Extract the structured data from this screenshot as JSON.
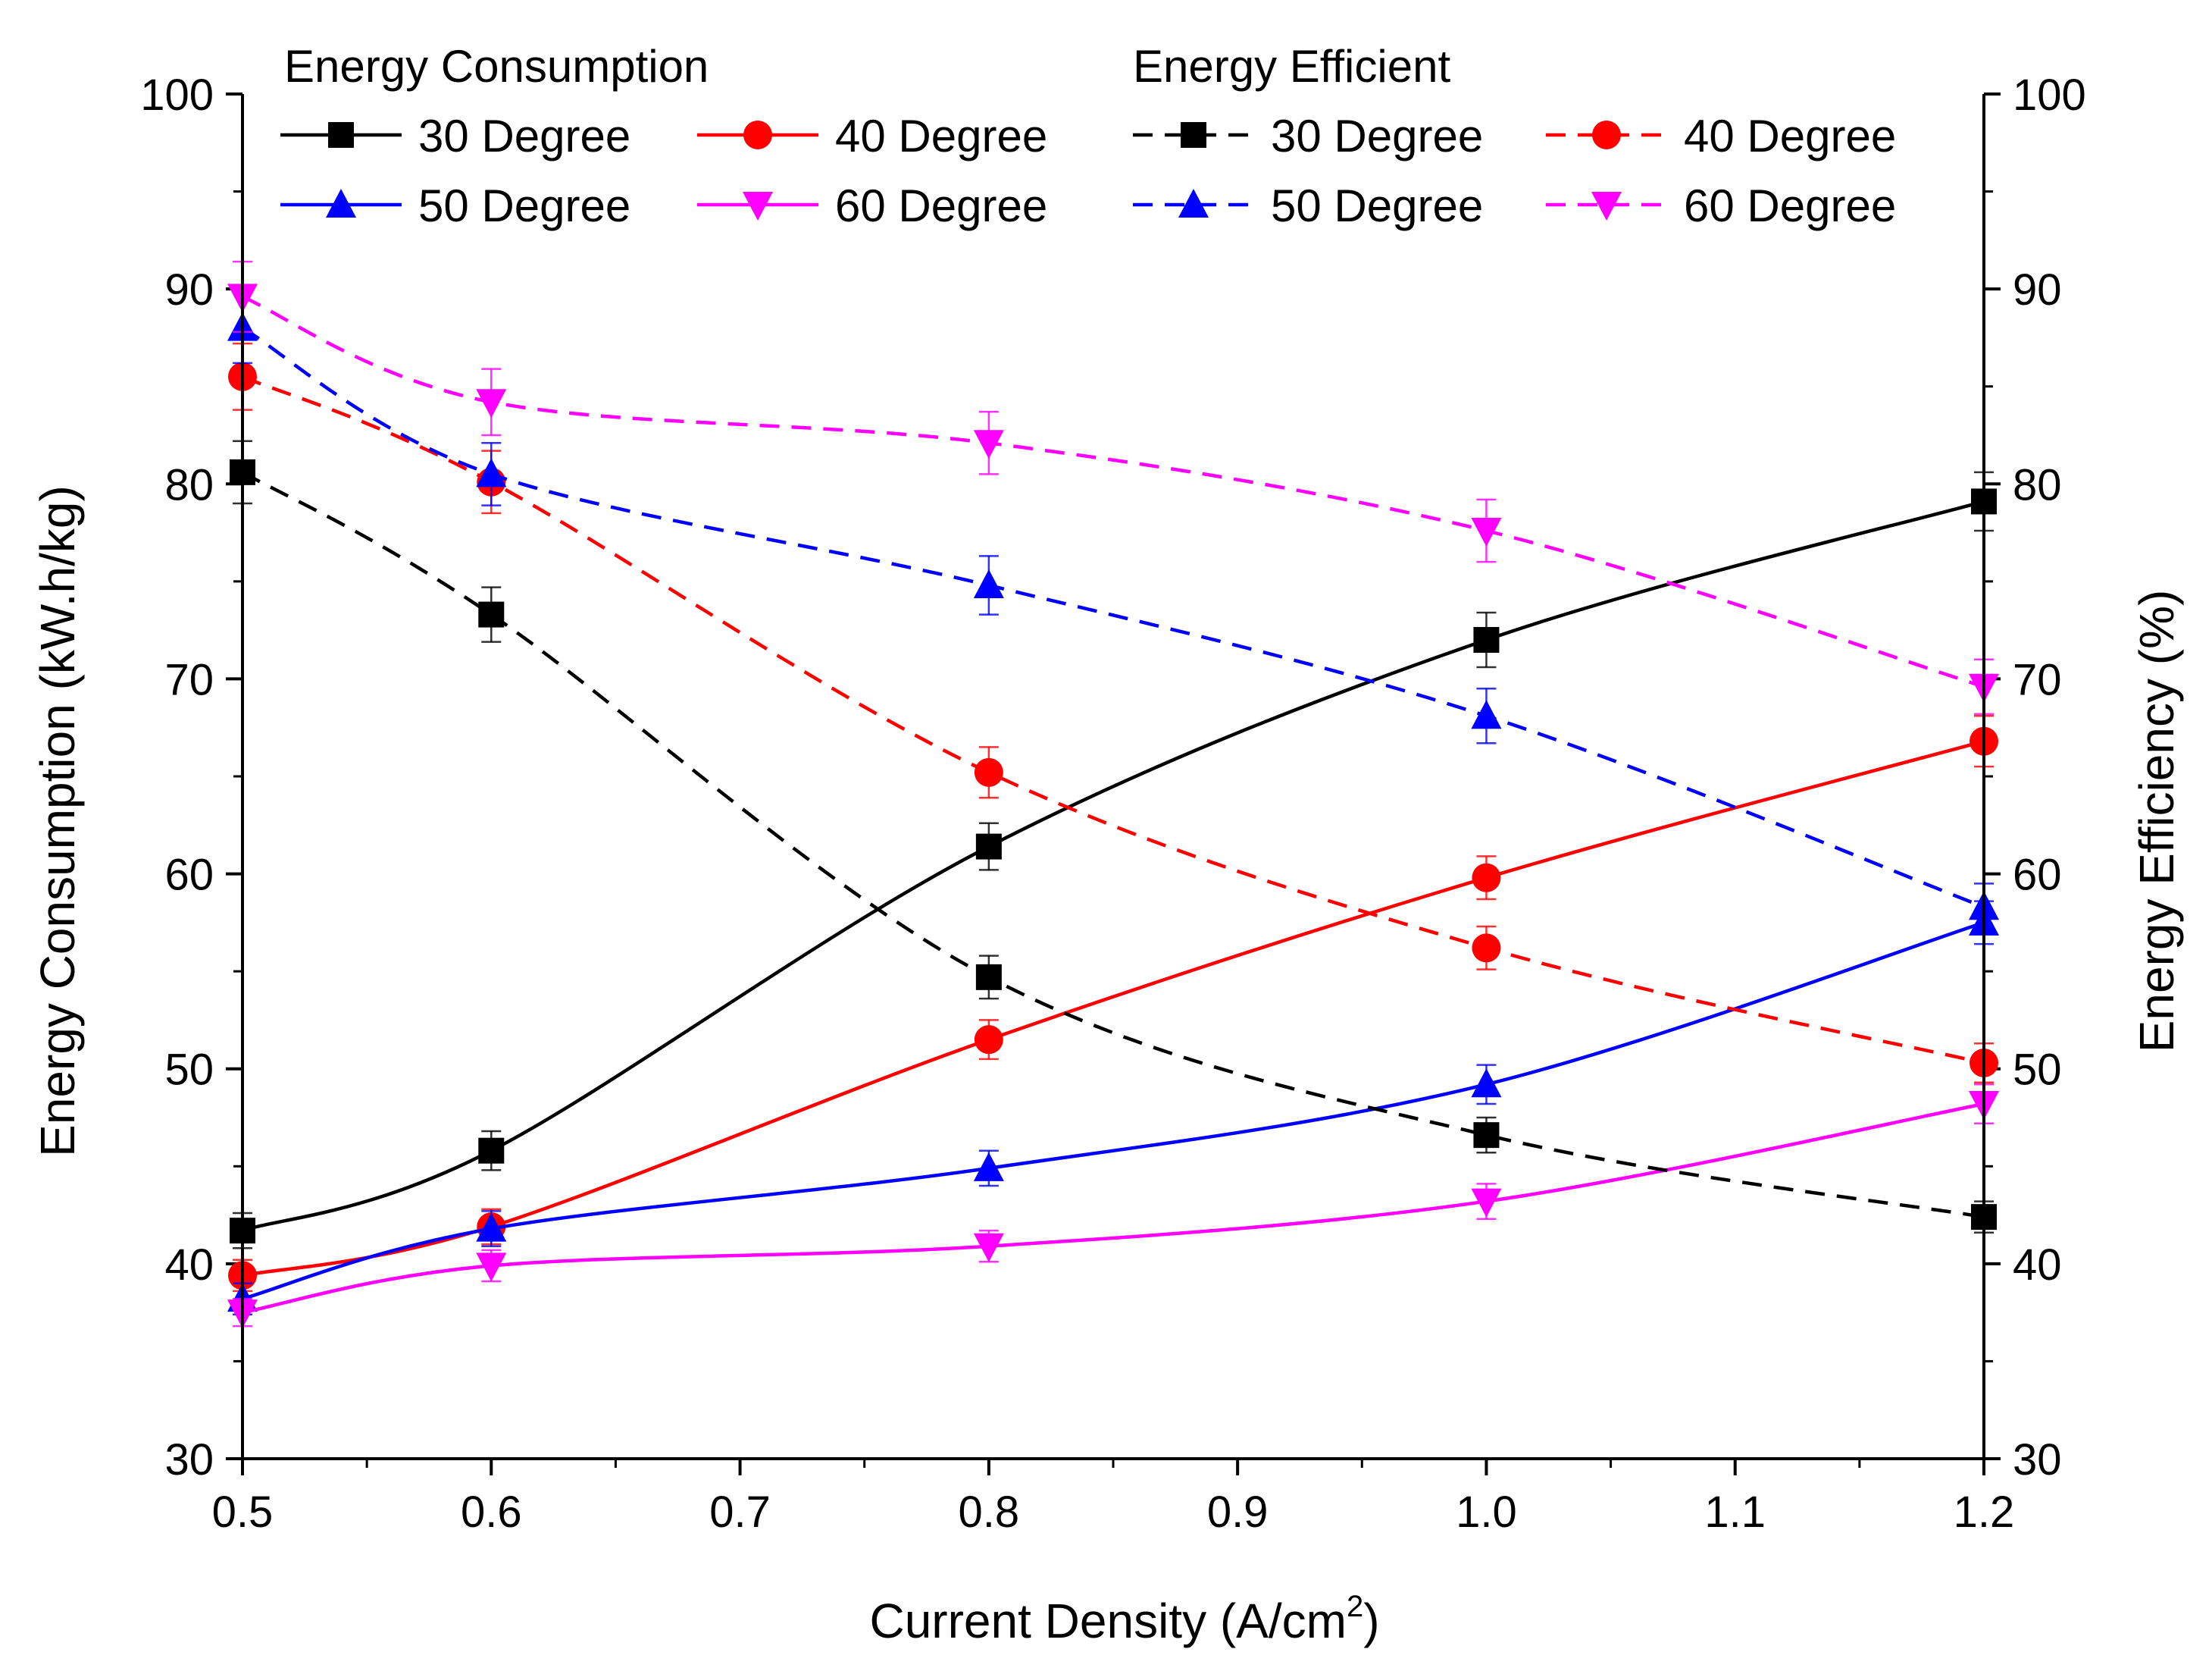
{
  "chart_data": {
    "type": "line",
    "xlabel": "Current Density (A/cm",
    "xlabel_sup": "2",
    "xlabel_close": ")",
    "ylabel_left": "Energy Consumption (kW.h/kg)",
    "ylabel_right": "Energy Efficiency (%)",
    "xlim": [
      0.5,
      1.2
    ],
    "ylim": [
      30,
      100
    ],
    "x_ticks": [
      "0.5",
      "0.6",
      "0.7",
      "0.8",
      "0.9",
      "1.0",
      "1.1",
      "1.2"
    ],
    "y_ticks": [
      "30",
      "40",
      "50",
      "60",
      "70",
      "80",
      "90",
      "100"
    ],
    "legend": {
      "placement": "top",
      "group_consumption": "Energy Consumption",
      "group_efficiency": "Energy Efficient"
    },
    "x": [
      0.5,
      0.6,
      0.8,
      1.0,
      1.2
    ],
    "series": [
      {
        "name": "30 Degree",
        "group": "consumption",
        "color": "#000000",
        "marker": "square",
        "dashed": false,
        "values": [
          41.7,
          45.8,
          61.4,
          72.0,
          79.1
        ],
        "errors": [
          0.9,
          1.0,
          1.2,
          1.4,
          1.5
        ]
      },
      {
        "name": "40 Degree",
        "group": "consumption",
        "color": "#ff0000",
        "marker": "circle",
        "dashed": false,
        "values": [
          39.4,
          41.9,
          51.5,
          59.8,
          66.8
        ],
        "errors": [
          0.8,
          0.9,
          1.0,
          1.1,
          1.3
        ]
      },
      {
        "name": "50 Degree",
        "group": "consumption",
        "color": "#0000ff",
        "marker": "triangle-up",
        "dashed": false,
        "values": [
          38.2,
          41.8,
          44.9,
          49.2,
          57.5
        ],
        "errors": [
          0.8,
          0.9,
          0.9,
          1.0,
          1.1
        ]
      },
      {
        "name": "60 Degree",
        "group": "consumption",
        "color": "#ff00ff",
        "marker": "triangle-down",
        "dashed": false,
        "values": [
          37.5,
          39.9,
          40.9,
          43.2,
          48.2
        ],
        "errors": [
          0.7,
          0.8,
          0.8,
          0.9,
          1.0
        ]
      },
      {
        "name": "30 Degree",
        "group": "efficiency",
        "color": "#000000",
        "marker": "square",
        "dashed": true,
        "values": [
          80.6,
          73.3,
          54.7,
          46.6,
          42.4
        ],
        "errors": [
          1.6,
          1.4,
          1.1,
          0.9,
          0.8
        ]
      },
      {
        "name": "40 Degree",
        "group": "efficiency",
        "color": "#ff0000",
        "marker": "circle",
        "dashed": true,
        "values": [
          85.5,
          80.1,
          65.2,
          56.2,
          50.3
        ],
        "errors": [
          1.7,
          1.6,
          1.3,
          1.1,
          1.0
        ]
      },
      {
        "name": "50 Degree",
        "group": "efficiency",
        "color": "#0000ff",
        "marker": "triangle-up",
        "dashed": true,
        "values": [
          88.0,
          80.5,
          74.8,
          68.1,
          58.3
        ],
        "errors": [
          1.8,
          1.6,
          1.5,
          1.4,
          1.2
        ]
      },
      {
        "name": "60 Degree",
        "group": "efficiency",
        "color": "#ff00ff",
        "marker": "triangle-down",
        "dashed": true,
        "values": [
          89.6,
          84.2,
          82.1,
          77.6,
          69.6
        ],
        "errors": [
          1.8,
          1.7,
          1.6,
          1.6,
          1.4
        ]
      }
    ]
  }
}
